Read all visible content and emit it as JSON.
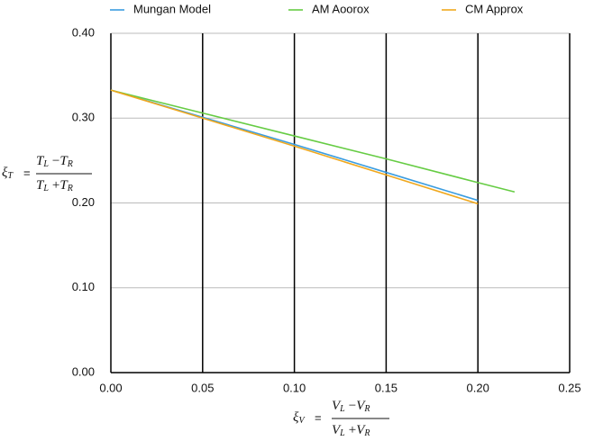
{
  "chart_data": {
    "type": "line",
    "x_label": {
      "lhs": {
        "base": "ξ",
        "sub": "V"
      },
      "equals": "=",
      "numerator": [
        {
          "base": "V",
          "sub": "L"
        },
        "−",
        {
          "base": "V",
          "sub": "R"
        }
      ],
      "denominator": [
        {
          "base": "V",
          "sub": "L"
        },
        "+",
        {
          "base": "V",
          "sub": "R"
        }
      ]
    },
    "y_label": {
      "lhs": {
        "base": "ξ",
        "sub": "T"
      },
      "equals": "=",
      "numerator": [
        {
          "base": "T",
          "sub": "L"
        },
        "−",
        {
          "base": "T",
          "sub": "R"
        }
      ],
      "denominator": [
        {
          "base": "T",
          "sub": "L"
        },
        "+",
        {
          "base": "T",
          "sub": "R"
        }
      ]
    },
    "series": [
      {
        "name": "Mungan Model",
        "color": "#3b9de0",
        "x": [
          0,
          0.05,
          0.1,
          0.15,
          0.2
        ],
        "values": [
          0.333,
          0.301,
          0.269,
          0.236,
          0.203
        ]
      },
      {
        "name": "AM Aoorox",
        "color": "#66cc44",
        "x": [
          0,
          0.05,
          0.1,
          0.15,
          0.2,
          0.22
        ],
        "values": [
          0.333,
          0.306,
          0.279,
          0.252,
          0.224,
          0.213
        ]
      },
      {
        "name": "CM Approx",
        "color": "#f0a81e",
        "x": [
          0,
          0.05,
          0.1,
          0.15,
          0.2
        ],
        "values": [
          0.333,
          0.3,
          0.267,
          0.233,
          0.199
        ]
      }
    ],
    "xlim": [
      0,
      0.25
    ],
    "xticks": [
      {
        "value": 0,
        "label": "0.00"
      },
      {
        "value": 0.05,
        "label": "0.05"
      },
      {
        "value": 0.1,
        "label": "0.10"
      },
      {
        "value": 0.15,
        "label": "0.15"
      },
      {
        "value": 0.2,
        "label": "0.20"
      },
      {
        "value": 0.25,
        "label": "0.25"
      }
    ],
    "ylim": [
      0,
      0.4
    ],
    "yticks": [
      {
        "value": 0,
        "label": "0.00"
      },
      {
        "value": 0.1,
        "label": "0.10"
      },
      {
        "value": 0.2,
        "label": "0.20"
      },
      {
        "value": 0.3,
        "label": "0.30"
      },
      {
        "value": 0.4,
        "label": "0.40"
      }
    ],
    "grid": true,
    "legend": "top"
  }
}
